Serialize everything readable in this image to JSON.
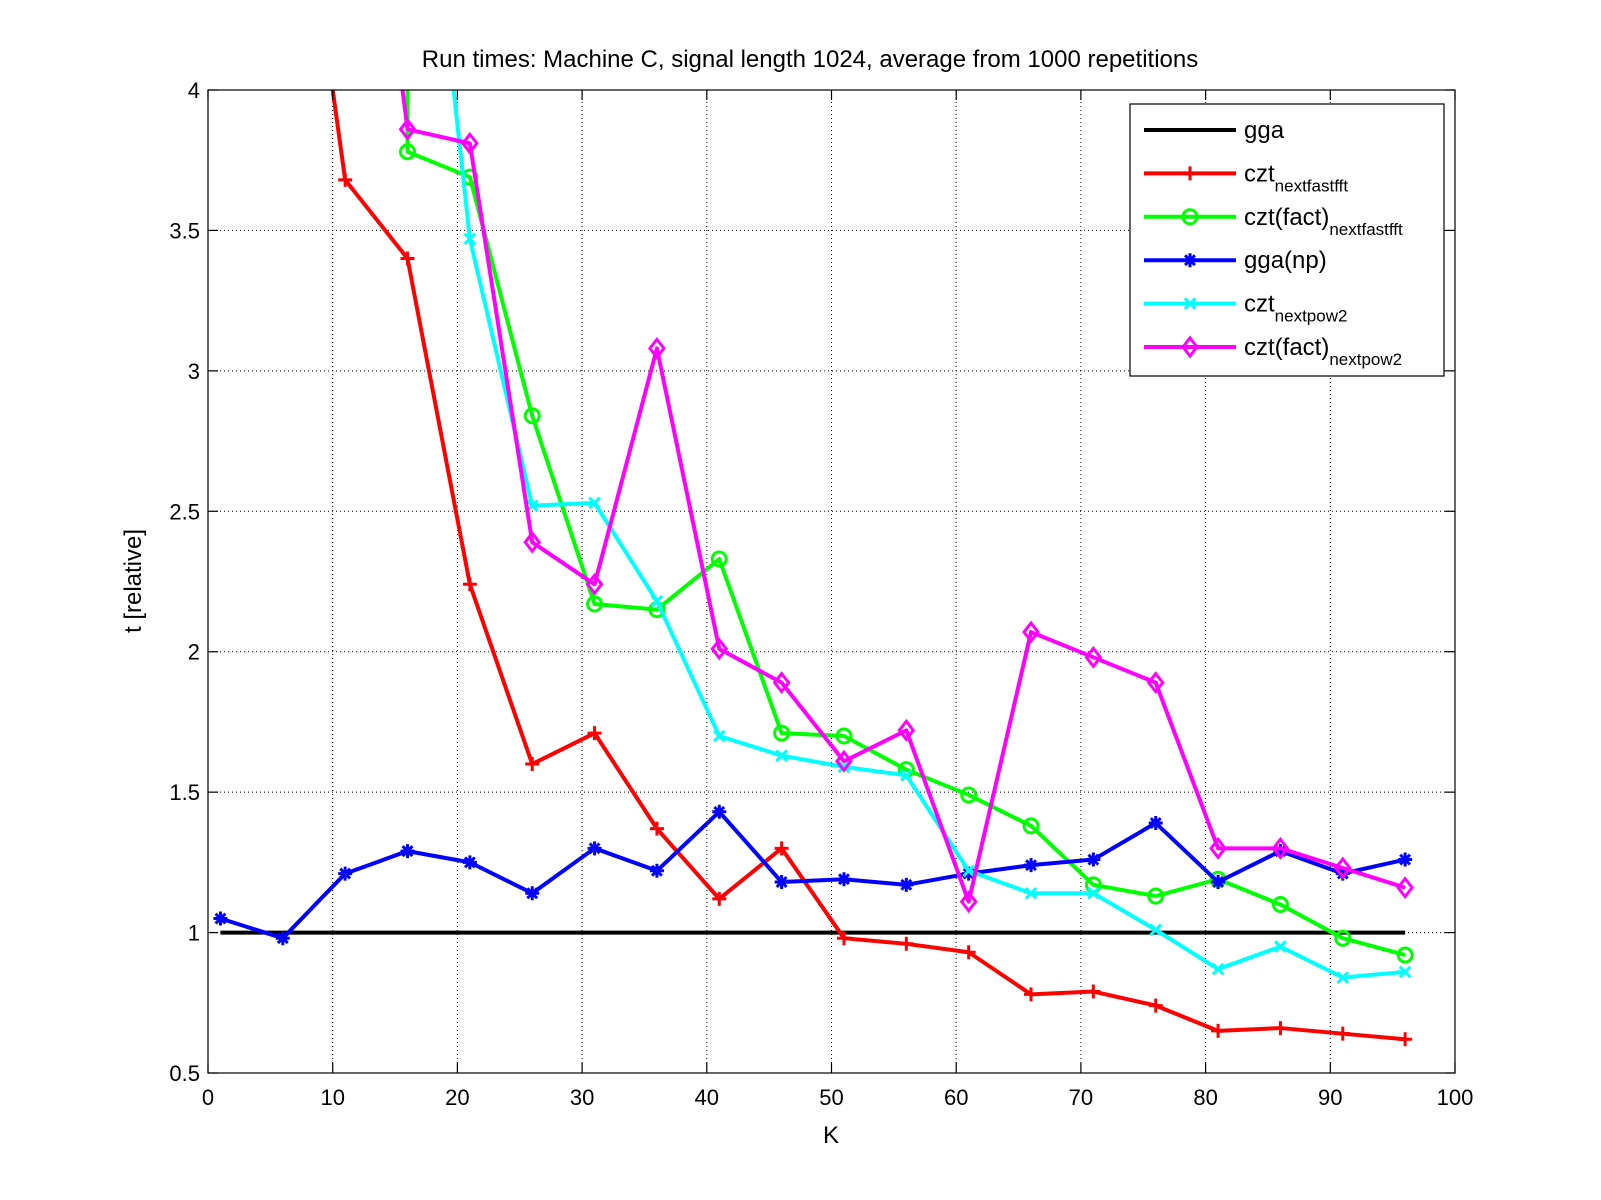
{
  "chart_data": {
    "type": "line",
    "title": "Run times: Machine C, signal length 1024, average from 1000 repetitions",
    "xlabel": "K",
    "ylabel": "t [relative]",
    "xlim": [
      0,
      100
    ],
    "ylim": [
      0.5,
      4
    ],
    "xticks": [
      0,
      10,
      20,
      30,
      40,
      50,
      60,
      70,
      80,
      90,
      100
    ],
    "yticks": [
      0.5,
      1,
      1.5,
      2,
      2.5,
      3,
      3.5,
      4
    ],
    "xtick_labels": [
      "0",
      "10",
      "20",
      "30",
      "40",
      "50",
      "60",
      "70",
      "80",
      "90",
      "100"
    ],
    "ytick_labels": [
      "0.5",
      "1",
      "1.5",
      "2",
      "2.5",
      "3",
      "3.5",
      "4"
    ],
    "grid": true,
    "legend_position": "top-right",
    "x": [
      1,
      6,
      11,
      16,
      21,
      26,
      31,
      36,
      41,
      46,
      51,
      56,
      61,
      66,
      71,
      76,
      81,
      86,
      91,
      96
    ],
    "series": [
      {
        "name": "gga",
        "name_main": "gga",
        "name_sub": "",
        "color": "#000000",
        "marker": "none",
        "values": [
          1,
          1,
          1,
          1,
          1,
          1,
          1,
          1,
          1,
          1,
          1,
          1,
          1,
          1,
          1,
          1,
          1,
          1,
          1,
          1
        ]
      },
      {
        "name": "czt_nextfastfft",
        "name_main": "czt",
        "name_sub": "nextfastfft",
        "color": "#ff0000",
        "marker": "plus",
        "values": [
          null,
          null,
          3.68,
          3.4,
          2.24,
          1.6,
          1.71,
          1.37,
          1.12,
          1.3,
          0.98,
          0.96,
          0.93,
          0.78,
          0.79,
          0.74,
          0.65,
          0.66,
          0.64,
          0.62
        ],
        "offscale_from": {
          "x": 10,
          "y": 4.0
        }
      },
      {
        "name": "czt(fact)_nextfastfft",
        "name_main": "czt(fact)",
        "name_sub": "nextfastfft",
        "color": "#00ff00",
        "marker": "circle",
        "values": [
          null,
          null,
          null,
          3.78,
          3.69,
          2.84,
          2.17,
          2.15,
          2.33,
          1.71,
          1.7,
          1.58,
          1.49,
          1.38,
          1.17,
          1.13,
          1.19,
          1.1,
          0.98,
          0.92
        ],
        "offscale_from": {
          "x": 16,
          "y": 4.0
        }
      },
      {
        "name": "gga(np)",
        "name_main": "gga(np)",
        "name_sub": "",
        "color": "#0000ff",
        "marker": "asterisk",
        "values": [
          1.05,
          0.98,
          1.21,
          1.29,
          1.25,
          1.14,
          1.3,
          1.22,
          1.43,
          1.18,
          1.19,
          1.17,
          1.21,
          1.24,
          1.26,
          1.39,
          1.18,
          1.29,
          1.21,
          1.26
        ]
      },
      {
        "name": "czt_nextpow2",
        "name_main": "czt",
        "name_sub": "nextpow2",
        "color": "#00ffff",
        "marker": "x",
        "values": [
          null,
          null,
          null,
          null,
          3.47,
          2.52,
          2.53,
          2.18,
          1.7,
          1.63,
          1.59,
          1.56,
          1.22,
          1.14,
          1.14,
          1.01,
          0.87,
          0.95,
          0.84,
          0.86
        ],
        "offscale_from": {
          "x": 19.7,
          "y": 4.0
        }
      },
      {
        "name": "czt(fact)_nextpow2",
        "name_main": "czt(fact)",
        "name_sub": "nextpow2",
        "color": "#ff00ff",
        "marker": "diamond",
        "values": [
          null,
          null,
          null,
          3.86,
          3.81,
          2.39,
          2.24,
          3.08,
          2.01,
          1.89,
          1.61,
          1.72,
          1.11,
          2.07,
          1.98,
          1.89,
          1.3,
          1.3,
          1.23,
          1.16
        ],
        "offscale_from": {
          "x": 15.6,
          "y": 4.0
        }
      }
    ]
  }
}
